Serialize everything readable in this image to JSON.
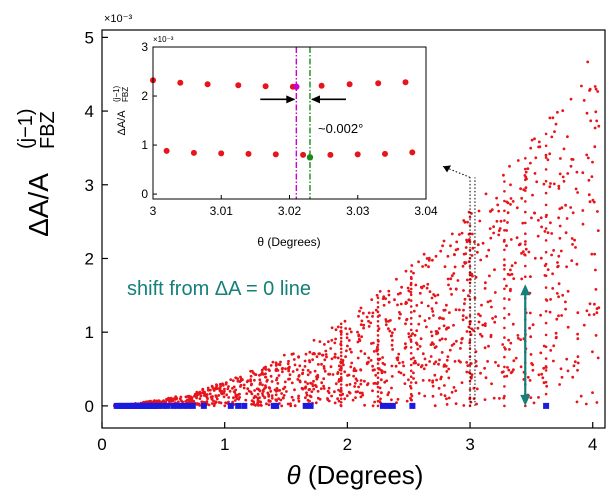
{
  "chart_data": [
    {
      "type": "scatter",
      "title": "",
      "xlabel": "θ (Degrees)",
      "ylabel": "ΔA/A_FBZ^(j−1)",
      "ylabel_main": "ΔA/A",
      "ylabel_sup": "(j−1)",
      "ylabel_sub": "FBZ",
      "xlabel_symbol": "θ",
      "xlabel_rest": " (Degrees)",
      "xlim": [
        0,
        4.1
      ],
      "ylim": [
        -0.3,
        5.1
      ],
      "xticks": [
        0,
        1,
        2,
        3,
        4
      ],
      "yticks": [
        0,
        1,
        2,
        3,
        4,
        5
      ],
      "y_multiplier": "×10⁻³",
      "colors": {
        "red": "#e8141b",
        "blue": "#1b1be0",
        "teal": "#14807a",
        "magenta": "#cc00cc",
        "green": "#1a8a1a"
      },
      "annotation": {
        "text": "shift from ΔA = 0 line",
        "color": "#14807a"
      },
      "shift_arrow": {
        "x": 3.45,
        "y_from": 0.0,
        "y_to": 1.65
      },
      "dotted_lines": [
        {
          "x": 3.0,
          "y_from": 0.0,
          "y_to": 3.1
        },
        {
          "x": 3.04,
          "y_from": 0.0,
          "y_to": 3.1
        }
      ],
      "inset_pointer": {
        "x_from": 3.0,
        "y_from": 3.1,
        "x_to": 2.78,
        "y_to": 3.25
      },
      "blue_points_x": [
        0.12,
        0.14,
        0.16,
        0.18,
        0.2,
        0.22,
        0.24,
        0.26,
        0.28,
        0.3,
        0.32,
        0.34,
        0.36,
        0.38,
        0.4,
        0.42,
        0.44,
        0.46,
        0.5,
        0.53,
        0.58,
        0.62,
        0.66,
        0.7,
        0.74,
        0.83,
        1.05,
        1.11,
        1.16,
        1.4,
        1.42,
        1.66,
        1.7,
        2.29,
        2.33,
        2.37,
        2.53,
        3.62
      ]
    },
    {
      "type": "scatter",
      "title": "",
      "xlabel": "θ (Degrees)",
      "ylabel": "ΔA/A_FBZ^(j−1)",
      "ylabel_main": "ΔA/A",
      "ylabel_sup": "(j−1)",
      "ylabel_sub": "FBZ",
      "xlim": [
        3.0,
        3.04
      ],
      "ylim": [
        -0.1,
        3.0
      ],
      "xticks": [
        3,
        3.01,
        3.02,
        3.03,
        3.04
      ],
      "xtick_labels": [
        "3",
        "3.01",
        "3.02",
        "3.03",
        "3.04"
      ],
      "yticks": [
        0,
        1,
        2,
        3
      ],
      "y_multiplier": "×10⁻³",
      "upper_series": {
        "x": [
          3.0,
          3.004,
          3.008,
          3.0125,
          3.0165,
          3.0205,
          3.0247,
          3.0288,
          3.033,
          3.037
        ],
        "y": [
          2.32,
          2.27,
          2.24,
          2.22,
          2.2,
          2.19,
          2.21,
          2.24,
          2.26,
          2.28
        ]
      },
      "lower_series": {
        "x": [
          3.002,
          3.006,
          3.01,
          3.014,
          3.018,
          3.022,
          3.026,
          3.03,
          3.034,
          3.038
        ],
        "y": [
          0.88,
          0.84,
          0.83,
          0.82,
          0.81,
          0.8,
          0.8,
          0.81,
          0.82,
          0.85
        ]
      },
      "magenta_line_x": 3.021,
      "green_line_x": 3.023,
      "magenta_point": {
        "x": 3.021,
        "y": 2.19
      },
      "green_point": {
        "x": 3.023,
        "y": 0.75
      },
      "gap_label": "~0.002°",
      "gap_y": 2.3
    }
  ]
}
